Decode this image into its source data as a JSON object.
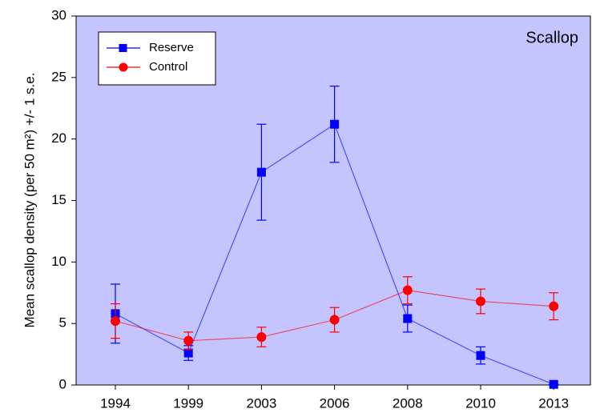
{
  "chart_data": {
    "type": "line",
    "annotation": "Scallop",
    "y_label": "Mean scallop density (per 50 m²) +/- 1 s.e.",
    "categories": [
      "1994",
      "1999",
      "2003",
      "2006",
      "2008",
      "2010",
      "2013"
    ],
    "series": [
      {
        "name": "Reserve",
        "color": "#0000ff",
        "marker": "square",
        "values": [
          5.8,
          2.6,
          17.3,
          21.2,
          5.4,
          2.4,
          0.05
        ],
        "errors": [
          2.4,
          0.6,
          3.9,
          3.1,
          1.1,
          0.7,
          0
        ]
      },
      {
        "name": "Control",
        "color": "#ff0000",
        "marker": "circle",
        "values": [
          5.2,
          3.6,
          3.9,
          5.3,
          7.7,
          6.8,
          6.4
        ],
        "errors": [
          1.4,
          0.7,
          0.8,
          1.0,
          1.1,
          1.0,
          1.1
        ]
      }
    ],
    "ylim": [
      0,
      30
    ],
    "yticks": [
      0,
      5,
      10,
      15,
      20,
      25,
      30
    ],
    "legend": "upper-left",
    "background": "#c4c4ff"
  }
}
